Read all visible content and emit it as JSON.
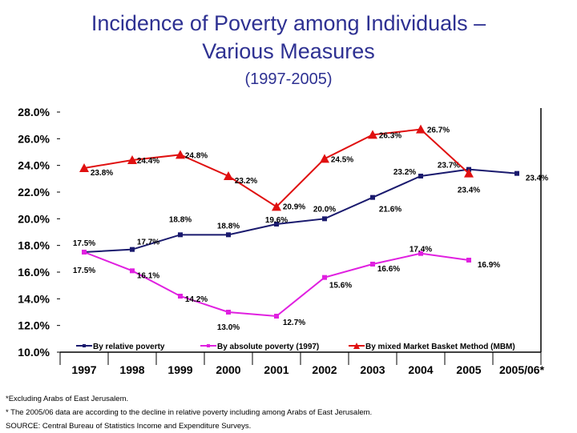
{
  "title_line1": "Incidence of Poverty among Individuals –",
  "title_line2": "Various Measures",
  "subtitle": "(1997-2005)",
  "chart_data": {
    "type": "line",
    "categories": [
      "1997",
      "1998",
      "1999",
      "2000",
      "2001",
      "2002",
      "2003",
      "2004",
      "2005",
      "2005/06*"
    ],
    "ylim": [
      10,
      28
    ],
    "yticks": [
      "10.0%",
      "12.0%",
      "14.0%",
      "16.0%",
      "18.0%",
      "20.0%",
      "22.0%",
      "24.0%",
      "26.0%",
      "28.0%"
    ],
    "grid": false,
    "legend_position": "bottom-inside",
    "series": [
      {
        "name": "By relative poverty",
        "color": "#1a1a6e",
        "marker": "square",
        "values": [
          17.5,
          17.7,
          18.8,
          18.8,
          19.6,
          20.0,
          21.6,
          23.2,
          23.7,
          23.4
        ],
        "labels": [
          "17.5%",
          "17.7%",
          "18.8%",
          "18.8%",
          "19.6%",
          "20.0%",
          "21.6%",
          "23.2%",
          "23.7%",
          "23.4%"
        ]
      },
      {
        "name": "By absolute poverty (1997)",
        "color": "#e020e0",
        "marker": "square",
        "values": [
          17.5,
          16.1,
          14.2,
          13.0,
          12.7,
          15.6,
          16.6,
          17.4,
          16.9,
          null
        ],
        "labels": [
          "17.5%",
          "16.1%",
          "14.2%",
          "13.0%",
          "12.7%",
          "15.6%",
          "16.6%",
          "17.4%",
          "16.9%",
          null
        ]
      },
      {
        "name": "By mixed Market Basket Method (MBM)",
        "color": "#e01010",
        "marker": "triangle",
        "values": [
          23.8,
          24.4,
          24.8,
          23.2,
          20.9,
          24.5,
          26.3,
          26.7,
          23.4,
          null
        ],
        "labels": [
          "23.8%",
          "24.4%",
          "24.8%",
          "23.2%",
          "20.9%",
          "24.5%",
          "26.3%",
          "26.7%",
          "23.4%",
          null
        ]
      }
    ]
  },
  "notes": {
    "n1": "*Excluding Arabs of East Jerusalem.",
    "n2": "* The 2005/06 data are according to the decline in relative poverty including among Arabs of East Jerusalem.",
    "source": "SOURCE: Central Bureau of Statistics Income and Expenditure Surveys."
  }
}
